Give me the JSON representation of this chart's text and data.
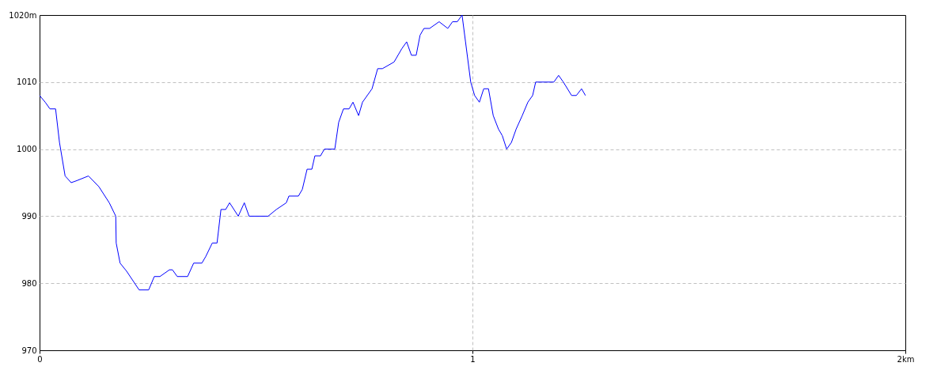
{
  "chart_data": {
    "type": "line",
    "grid": true,
    "x": [
      0,
      0.013,
      0.024,
      0.037,
      0.046,
      0.059,
      0.073,
      0.086,
      0.113,
      0.137,
      0.161,
      0.176,
      0.177,
      0.186,
      0.201,
      0.23,
      0.252,
      0.265,
      0.278,
      0.3,
      0.307,
      0.318,
      0.342,
      0.356,
      0.375,
      0.384,
      0.399,
      0.41,
      0.419,
      0.43,
      0.439,
      0.459,
      0.473,
      0.484,
      0.528,
      0.547,
      0.57,
      0.576,
      0.598,
      0.607,
      0.618,
      0.629,
      0.636,
      0.649,
      0.658,
      0.682,
      0.691,
      0.702,
      0.715,
      0.724,
      0.737,
      0.746,
      0.768,
      0.781,
      0.792,
      0.819,
      0.837,
      0.848,
      0.859,
      0.87,
      0.879,
      0.888,
      0.901,
      0.923,
      0.943,
      0.954,
      0.965,
      0.976,
      0.984,
      0.996,
      1.005,
      1.016,
      1.026,
      1.037,
      1.048,
      1.06,
      1.069,
      1.079,
      1.09,
      1.101,
      1.115,
      1.128,
      1.139,
      1.146,
      1.188,
      1.199,
      1.21,
      1.229,
      1.24,
      1.252,
      1.261
    ],
    "series": [
      {
        "color": "#0000ff",
        "values": [
          1008,
          1007,
          1006,
          1006,
          1001,
          996,
          995,
          995.3,
          996,
          994.4,
          992,
          990,
          986,
          983,
          981.8,
          979,
          979,
          981,
          981,
          982,
          982,
          981,
          981,
          983,
          983,
          984,
          986,
          986,
          991,
          991,
          992,
          990,
          992,
          990,
          990,
          991,
          992,
          993,
          993,
          994,
          997,
          997,
          999,
          999,
          1000,
          1000,
          1004,
          1006,
          1006,
          1007,
          1005,
          1007,
          1009,
          1012,
          1012,
          1013,
          1015,
          1016,
          1014,
          1014,
          1017,
          1018,
          1018,
          1019,
          1018,
          1019,
          1019,
          1020,
          1016,
          1010,
          1008,
          1007,
          1009,
          1009,
          1005,
          1003,
          1002,
          1000,
          1001,
          1003,
          1005,
          1007,
          1008,
          1010,
          1010,
          1011,
          1010,
          1008,
          1008,
          1009,
          1008
        ]
      }
    ],
    "xlim": [
      0,
      2
    ],
    "xticks": [
      0,
      1,
      {
        "value": 2,
        "label": "2km"
      }
    ],
    "ylim": [
      970,
      1020
    ],
    "yticks": [
      970,
      980,
      990,
      1000,
      1010,
      {
        "value": 1020,
        "label": "1020m"
      }
    ]
  }
}
